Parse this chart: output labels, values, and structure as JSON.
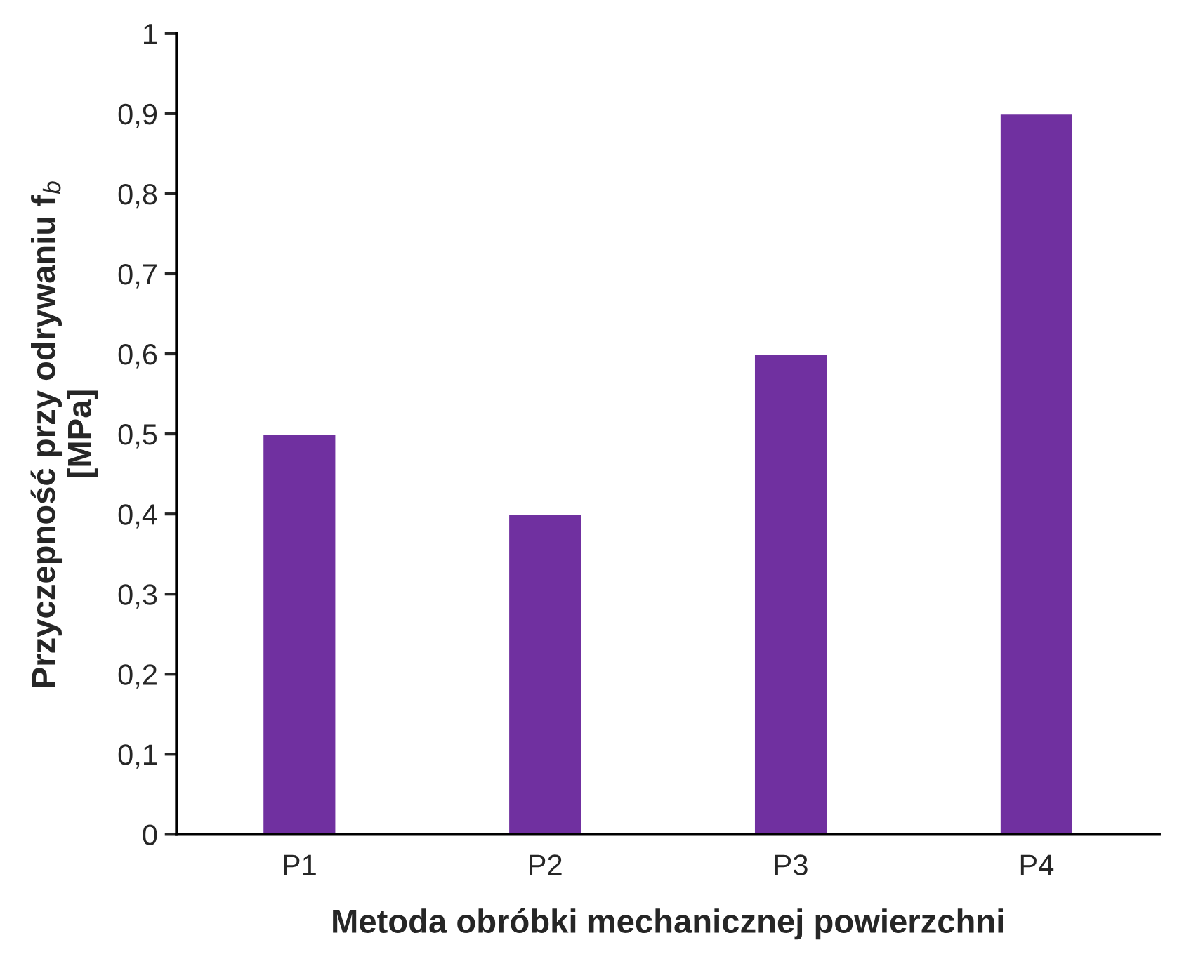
{
  "chart_data": {
    "type": "bar",
    "xlabel": "Metoda obróbki mechanicznej powierzchni",
    "ylabel": "Przyczepność przy odrywaniu f$_{b}$\n[MPa]",
    "categories": [
      "P1",
      "P2",
      "P3",
      "P4"
    ],
    "values": [
      0.5,
      0.4,
      0.6,
      0.9
    ],
    "color": "#7030a0",
    "ylim": [
      0,
      1
    ],
    "yticks": [
      0,
      {
        "value": 0.1,
        "label": "0,1"
      },
      {
        "value": 0.2,
        "label": "0,2"
      },
      {
        "value": 0.3,
        "label": "0,3"
      },
      {
        "value": 0.4,
        "label": "0,4"
      },
      {
        "value": 0.5,
        "label": "0,5"
      },
      {
        "value": 0.6,
        "label": "0,6"
      },
      {
        "value": 0.7,
        "label": "0,7"
      },
      {
        "value": 0.8,
        "label": "0,8"
      },
      {
        "value": 0.9,
        "label": "0,9"
      },
      1
    ],
    "grid": false,
    "legend": false
  }
}
